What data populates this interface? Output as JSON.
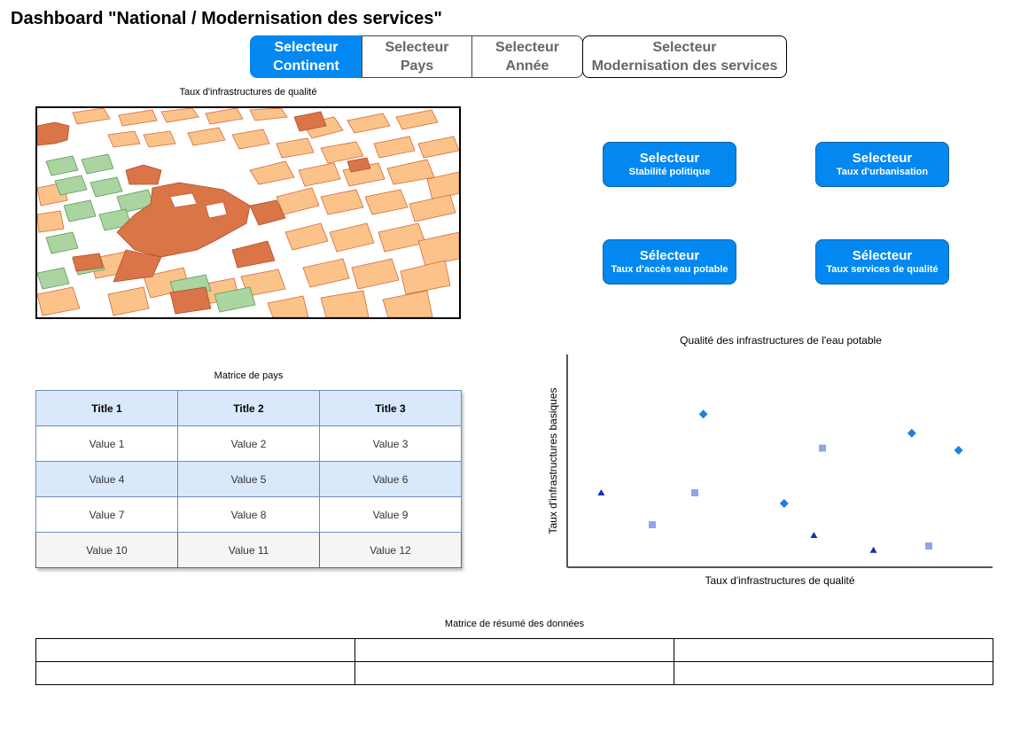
{
  "page_title": "Dashboard \"National / Modernisation des services\"",
  "tabs": [
    {
      "line1": "Selecteur",
      "line2": "Continent",
      "active": true
    },
    {
      "line1": "Selecteur",
      "line2": "Pays",
      "active": false
    },
    {
      "line1": "Selecteur",
      "line2": "Année",
      "active": false
    },
    {
      "line1": "Selecteur",
      "line2": "Modernisation des services",
      "active": false
    }
  ],
  "map": {
    "caption": "Taux d'infrastructures de qualité"
  },
  "selectors": [
    {
      "title": "Selecteur",
      "subtitle": "Stabilité politique"
    },
    {
      "title": "Selecteur",
      "subtitle": "Taux d'urbanisation"
    },
    {
      "title": "Sélecteur",
      "subtitle": "Taux d'accès eau potable"
    },
    {
      "title": "Sélecteur",
      "subtitle": "Taux services de qualité"
    }
  ],
  "matrix": {
    "caption": "Matrice de pays",
    "headers": [
      "Title 1",
      "Title 2",
      "Title 3"
    ],
    "rows": [
      [
        "Value 1",
        "Value 2",
        "Value 3"
      ],
      [
        "Value 4",
        "Value 5",
        "Value 6"
      ],
      [
        "Value 7",
        "Value 8",
        "Value 9"
      ],
      [
        "Value 10",
        "Value 11",
        "Value 12"
      ]
    ]
  },
  "chart_data": {
    "type": "scatter",
    "title": "Qualité des infrastructures de l'eau potable",
    "xlabel": "Taux d'infrastructures de qualité",
    "ylabel": "Taux d'infrastructures basiques",
    "xlim": [
      0,
      100
    ],
    "ylim": [
      0,
      100
    ],
    "grid": false,
    "series": [
      {
        "marker": "diamond",
        "color": "#1f7fe0",
        "points": [
          [
            32,
            72
          ],
          [
            51,
            30
          ],
          [
            81,
            63
          ],
          [
            92,
            55
          ]
        ]
      },
      {
        "marker": "square",
        "color": "#8fa6ee",
        "points": [
          [
            20,
            20
          ],
          [
            30,
            35
          ],
          [
            60,
            56
          ],
          [
            85,
            10
          ]
        ]
      },
      {
        "marker": "triangle",
        "color": "#1a2fa8",
        "points": [
          [
            8,
            35
          ],
          [
            58,
            15
          ],
          [
            72,
            8
          ]
        ]
      }
    ]
  },
  "summary": {
    "caption": "Matrice de résumé des données",
    "rows": [
      [
        "",
        "",
        ""
      ],
      [
        "",
        "",
        ""
      ]
    ]
  },
  "colors": {
    "accent": "#0288f0",
    "table_header": "#dae8fc",
    "table_border": "#6c8ebf"
  }
}
